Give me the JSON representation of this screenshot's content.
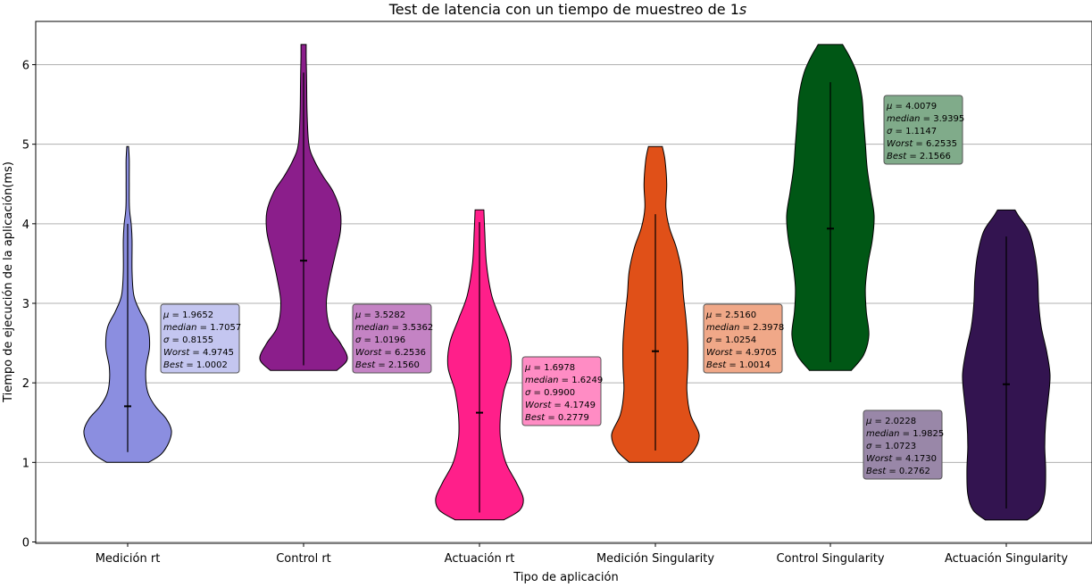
{
  "chart_data": {
    "type": "violin",
    "title": "Test de latencia con un tiempo de muestreo de 1",
    "title_unit": "s",
    "xlabel": "Tipo de aplicación",
    "ylabel": "Tiempo de ejecución de la aplicación(ms)",
    "ylim": [
      0,
      6.55
    ],
    "yticks": [
      0,
      1,
      2,
      3,
      4,
      5,
      6
    ],
    "grid": "horizontal",
    "categories": [
      "Medición rt",
      "Control rt",
      "Actuación rt",
      "Medición Singularity",
      "Control Singularity",
      "Actuación Singularity"
    ],
    "series": [
      {
        "category": "Medición rt",
        "color": "#8b8ee0",
        "box_color": "#c4c6f0",
        "min": 1.0002,
        "max": 4.9745,
        "median": 1.7057,
        "mean": 1.9652,
        "whisker": [
          1.13,
          4.0
        ],
        "stats": [
          "μ = 1.9652",
          "median = 1.7057",
          "σ = 0.8155",
          "Worst = 4.9745",
          "Best = 1.0002"
        ],
        "profile": [
          [
            1.0,
            0.24
          ],
          [
            1.1,
            0.38
          ],
          [
            1.25,
            0.47
          ],
          [
            1.4,
            0.5
          ],
          [
            1.55,
            0.44
          ],
          [
            1.7,
            0.32
          ],
          [
            1.85,
            0.24
          ],
          [
            2.0,
            0.21
          ],
          [
            2.2,
            0.21
          ],
          [
            2.45,
            0.25
          ],
          [
            2.7,
            0.23
          ],
          [
            2.9,
            0.14
          ],
          [
            3.1,
            0.07
          ],
          [
            3.4,
            0.05
          ],
          [
            3.8,
            0.05
          ],
          [
            4.0,
            0.04
          ],
          [
            4.2,
            0.02
          ],
          [
            4.5,
            0.018
          ],
          [
            4.8,
            0.018
          ],
          [
            4.97,
            0.01
          ]
        ]
      },
      {
        "category": "Control rt",
        "color": "#8b1e8b",
        "box_color": "#c483c4",
        "min": 2.156,
        "max": 6.2536,
        "median": 3.5362,
        "mean": 3.5282,
        "whisker": [
          2.22,
          5.9
        ],
        "stats": [
          "μ = 3.5282",
          "median = 3.5362",
          "σ = 1.0196",
          "Worst = 6.2536",
          "Best = 2.1560"
        ],
        "profile": [
          [
            2.156,
            0.38
          ],
          [
            2.3,
            0.5
          ],
          [
            2.5,
            0.42
          ],
          [
            2.7,
            0.3
          ],
          [
            3.0,
            0.26
          ],
          [
            3.3,
            0.3
          ],
          [
            3.6,
            0.36
          ],
          [
            3.9,
            0.42
          ],
          [
            4.15,
            0.42
          ],
          [
            4.4,
            0.34
          ],
          [
            4.6,
            0.22
          ],
          [
            4.8,
            0.12
          ],
          [
            5.0,
            0.06
          ],
          [
            5.4,
            0.04
          ],
          [
            5.8,
            0.035
          ],
          [
            6.1,
            0.03
          ],
          [
            6.2536,
            0.03
          ]
        ]
      },
      {
        "category": "Actuación rt",
        "color": "#ff1f8a",
        "box_color": "#ff8cc4",
        "min": 0.2779,
        "max": 4.1749,
        "median": 1.6249,
        "mean": 1.6978,
        "whisker": [
          0.37,
          4.02
        ],
        "stats": [
          "μ = 1.6978",
          "median = 1.6249",
          "σ = 0.9900",
          "Worst = 4.1749",
          "Best = 0.2779"
        ],
        "profile": [
          [
            0.2779,
            0.28
          ],
          [
            0.4,
            0.46
          ],
          [
            0.55,
            0.5
          ],
          [
            0.75,
            0.42
          ],
          [
            1.0,
            0.3
          ],
          [
            1.3,
            0.24
          ],
          [
            1.6,
            0.24
          ],
          [
            1.9,
            0.28
          ],
          [
            2.2,
            0.36
          ],
          [
            2.5,
            0.34
          ],
          [
            2.8,
            0.24
          ],
          [
            3.1,
            0.14
          ],
          [
            3.5,
            0.08
          ],
          [
            3.9,
            0.06
          ],
          [
            4.1749,
            0.05
          ]
        ]
      },
      {
        "category": "Medición Singularity",
        "color": "#e05018",
        "box_color": "#f0a888",
        "min": 1.0014,
        "max": 4.9705,
        "median": 2.3978,
        "mean": 2.516,
        "whisker": [
          1.15,
          4.12
        ],
        "stats": [
          "μ = 2.5160",
          "median = 2.3978",
          "σ = 1.0254",
          "Worst = 4.9705",
          "Best = 1.0014"
        ],
        "profile": [
          [
            1.0014,
            0.3
          ],
          [
            1.15,
            0.44
          ],
          [
            1.35,
            0.5
          ],
          [
            1.6,
            0.4
          ],
          [
            1.9,
            0.36
          ],
          [
            2.2,
            0.37
          ],
          [
            2.5,
            0.37
          ],
          [
            2.8,
            0.35
          ],
          [
            3.1,
            0.32
          ],
          [
            3.4,
            0.3
          ],
          [
            3.7,
            0.24
          ],
          [
            3.95,
            0.16
          ],
          [
            4.2,
            0.12
          ],
          [
            4.5,
            0.13
          ],
          [
            4.8,
            0.11
          ],
          [
            4.9705,
            0.08
          ]
        ]
      },
      {
        "category": "Control Singularity",
        "color": "#005715",
        "box_color": "#80ab8a",
        "min": 2.1566,
        "max": 6.2535,
        "median": 3.9395,
        "mean": 4.0079,
        "whisker": [
          2.26,
          5.78
        ],
        "stats": [
          "μ = 4.0079",
          "median = 3.9395",
          "σ = 1.1147",
          "Worst = 6.2535",
          "Best = 2.1566"
        ],
        "profile": [
          [
            2.1566,
            0.24
          ],
          [
            2.35,
            0.38
          ],
          [
            2.6,
            0.44
          ],
          [
            2.9,
            0.41
          ],
          [
            3.2,
            0.4
          ],
          [
            3.5,
            0.43
          ],
          [
            3.8,
            0.48
          ],
          [
            4.1,
            0.5
          ],
          [
            4.4,
            0.46
          ],
          [
            4.7,
            0.42
          ],
          [
            5.0,
            0.4
          ],
          [
            5.3,
            0.38
          ],
          [
            5.6,
            0.36
          ],
          [
            5.9,
            0.3
          ],
          [
            6.1,
            0.22
          ],
          [
            6.2535,
            0.14
          ]
        ]
      },
      {
        "category": "Actuación Singularity",
        "color": "#331450",
        "box_color": "#9987a8",
        "min": 0.2762,
        "max": 4.173,
        "median": 1.9825,
        "mean": 2.0228,
        "whisker": [
          0.42,
          3.84
        ],
        "stats": [
          "μ = 2.0228",
          "median = 1.9825",
          "σ = 1.0723",
          "Worst = 4.1730",
          "Best = 0.2762"
        ],
        "profile": [
          [
            0.2762,
            0.24
          ],
          [
            0.4,
            0.38
          ],
          [
            0.6,
            0.44
          ],
          [
            0.9,
            0.45
          ],
          [
            1.2,
            0.44
          ],
          [
            1.5,
            0.45
          ],
          [
            1.8,
            0.48
          ],
          [
            2.1,
            0.5
          ],
          [
            2.4,
            0.46
          ],
          [
            2.7,
            0.4
          ],
          [
            3.0,
            0.37
          ],
          [
            3.3,
            0.36
          ],
          [
            3.6,
            0.33
          ],
          [
            3.9,
            0.26
          ],
          [
            4.1,
            0.14
          ],
          [
            4.173,
            0.1
          ]
        ]
      }
    ]
  }
}
